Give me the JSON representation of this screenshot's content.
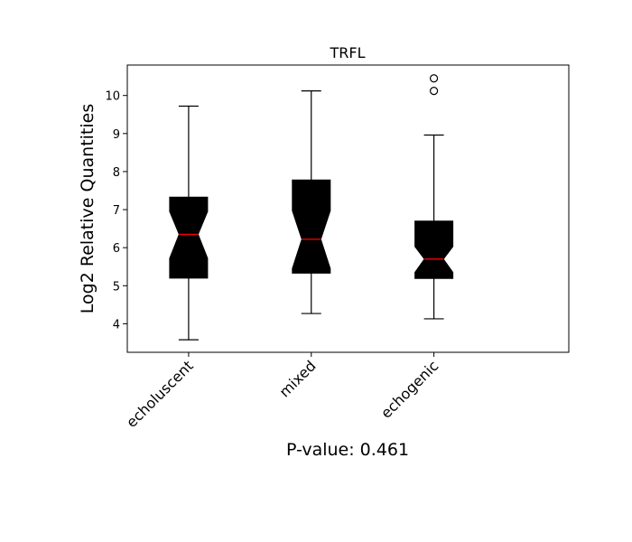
{
  "chart_data": {
    "type": "boxplot",
    "title": "TRFL",
    "xlabel": "P-value: 0.461",
    "ylabel": "Log2 Relative Quantities",
    "categories": [
      "echoluscent",
      "mixed",
      "echogenic"
    ],
    "yticks": [
      4,
      5,
      6,
      7,
      8,
      9,
      10
    ],
    "ylim": [
      3.25,
      10.8
    ],
    "xlim": [
      0.5,
      4.1
    ],
    "notched": true,
    "grid": false,
    "boxes": [
      {
        "category": "echoluscent",
        "whisker_low": 3.58,
        "q1": 5.2,
        "median": 6.35,
        "q3": 7.33,
        "whisker_high": 9.72,
        "notch_low": 5.72,
        "notch_high": 6.95,
        "outliers": []
      },
      {
        "category": "mixed",
        "whisker_low": 4.27,
        "q1": 5.33,
        "median": 6.22,
        "q3": 7.78,
        "whisker_high": 10.12,
        "notch_low": 5.45,
        "notch_high": 6.97,
        "outliers": []
      },
      {
        "category": "echogenic",
        "whisker_low": 4.13,
        "q1": 5.19,
        "median": 5.7,
        "q3": 6.7,
        "whisker_high": 8.96,
        "notch_low": 5.35,
        "notch_high": 6.03,
        "outliers": [
          10.12,
          10.45
        ]
      }
    ],
    "colors": {
      "box": "#000000",
      "median": "#ff0000",
      "whisker": "#000000",
      "axis": "#000000"
    }
  }
}
